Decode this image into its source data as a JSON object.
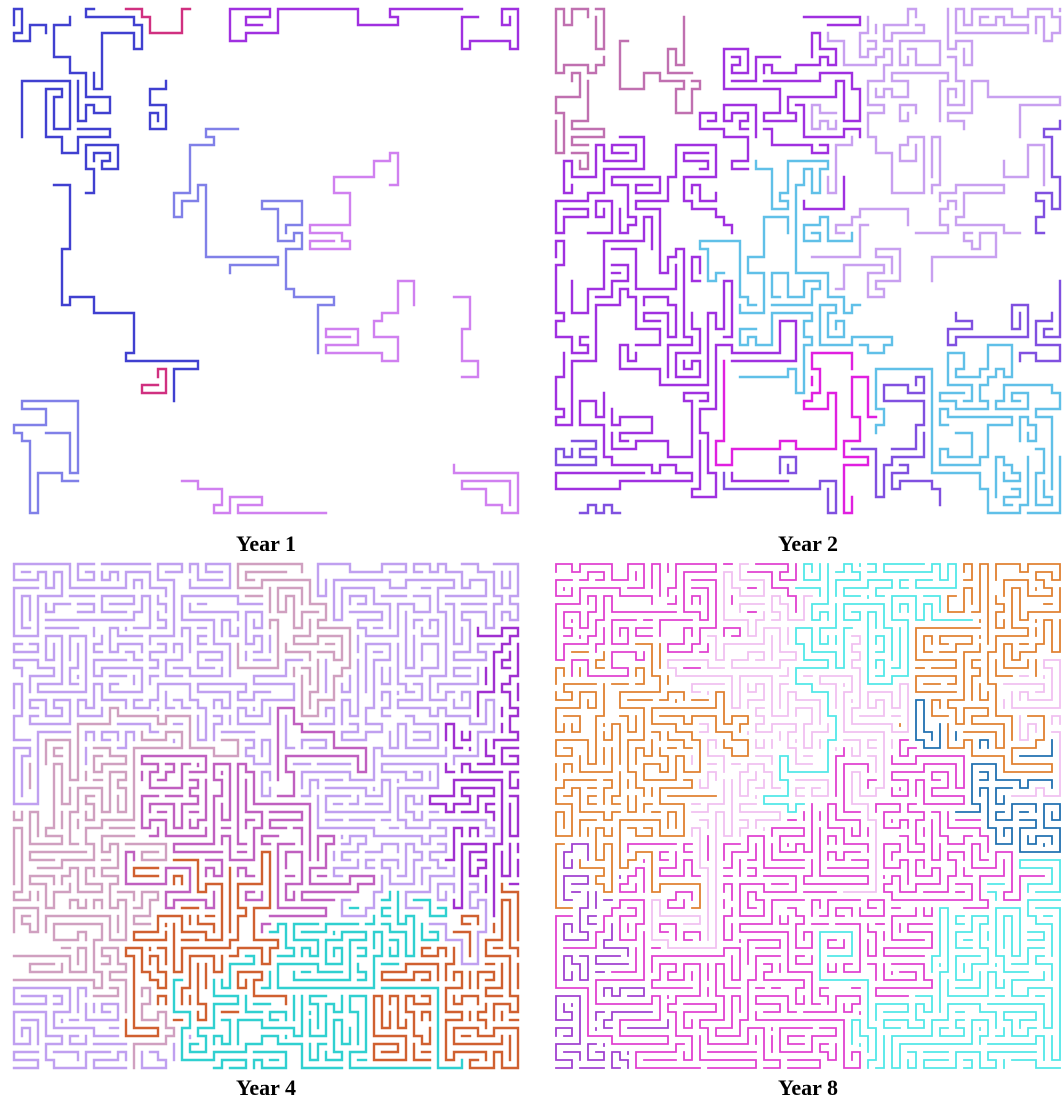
{
  "panels": [
    {
      "caption": "Year 1"
    },
    {
      "caption": "Year 2"
    },
    {
      "caption": "Year 4"
    },
    {
      "caption": "Year 8"
    }
  ]
}
